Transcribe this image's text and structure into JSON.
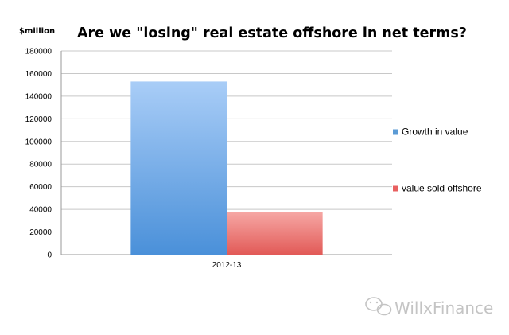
{
  "chart_data": {
    "type": "bar",
    "title": "Are we \"losing\" real estate offshore in net terms?",
    "ylabel": "$million",
    "xlabel": "",
    "categories": [
      "2012-13"
    ],
    "series": [
      {
        "name": "Growth in value",
        "values": [
          153000
        ],
        "color": "#5b9bd5"
      },
      {
        "name": "value sold offshore",
        "values": [
          37500
        ],
        "color": "#e86060"
      }
    ],
    "ylim": [
      0,
      180000
    ],
    "yticks": [
      0,
      20000,
      40000,
      60000,
      80000,
      100000,
      120000,
      140000,
      160000,
      180000
    ],
    "grid": true,
    "legend_position": "right"
  },
  "watermark": {
    "text": "WillxFinance"
  }
}
